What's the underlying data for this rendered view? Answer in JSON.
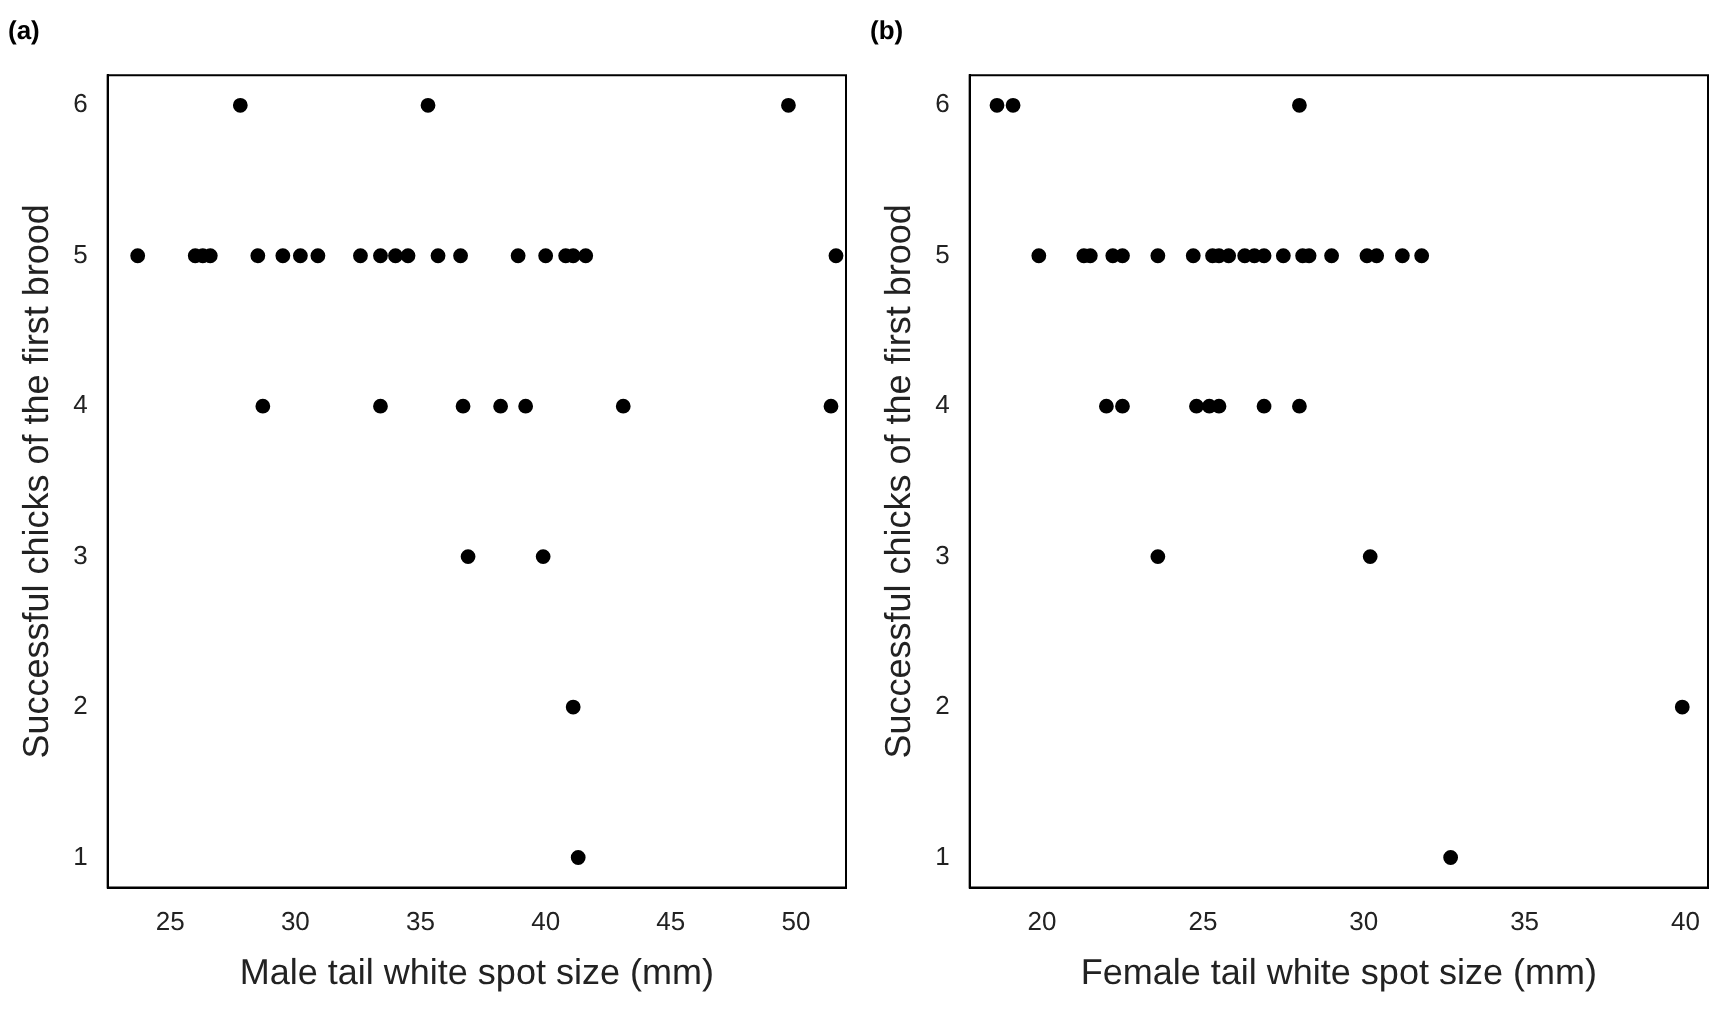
{
  "chart_data": [
    {
      "type": "scatter",
      "title": "(a)",
      "xlabel": "Male tail white spot size (mm)",
      "ylabel": "Successful chicks of the first brood",
      "xlim": [
        22.5,
        52.0
      ],
      "xticks": [
        25,
        30,
        35,
        40,
        45,
        50
      ],
      "ylim": [
        0.8,
        6.2
      ],
      "yticks": [
        1,
        2,
        3,
        4,
        5,
        6
      ],
      "grid": false,
      "marker": "circle",
      "series": [
        {
          "color": "#000000",
          "x": [
            27.8,
            35.3,
            49.7,
            23.7,
            26.0,
            26.3,
            26.6,
            28.5,
            29.5,
            30.2,
            30.9,
            32.6,
            33.4,
            34.0,
            34.5,
            35.7,
            36.6,
            38.9,
            40.0,
            40.8,
            41.1,
            41.6,
            51.6,
            28.7,
            33.4,
            36.7,
            38.2,
            39.2,
            43.1,
            51.4,
            36.9,
            39.9,
            41.1,
            41.3
          ],
          "values": [
            6,
            6,
            6,
            5,
            5,
            5,
            5,
            5,
            5,
            5,
            5,
            5,
            5,
            5,
            5,
            5,
            5,
            5,
            5,
            5,
            5,
            5,
            5,
            4,
            4,
            4,
            4,
            4,
            4,
            4,
            3,
            3,
            2,
            1
          ]
        }
      ]
    },
    {
      "type": "scatter",
      "title": "(b)",
      "xlabel": "Female tail white spot size (mm)",
      "ylabel": "Successful chicks of the first brood",
      "xlim": [
        17.75,
        40.7
      ],
      "xticks": [
        20,
        25,
        30,
        35,
        40
      ],
      "ylim": [
        0.8,
        6.2
      ],
      "yticks": [
        1,
        2,
        3,
        4,
        5,
        6
      ],
      "grid": false,
      "marker": "circle",
      "series": [
        {
          "color": "#000000",
          "x": [
            18.6,
            19.1,
            28.0,
            19.9,
            21.3,
            21.5,
            22.2,
            22.5,
            23.6,
            24.7,
            25.3,
            25.5,
            25.8,
            26.3,
            26.6,
            26.9,
            27.5,
            28.1,
            28.3,
            29.0,
            30.1,
            30.4,
            31.2,
            31.8,
            22.0,
            22.5,
            24.8,
            25.2,
            25.5,
            26.9,
            28.0,
            23.6,
            30.2,
            39.9,
            32.7
          ],
          "values": [
            6,
            6,
            6,
            5,
            5,
            5,
            5,
            5,
            5,
            5,
            5,
            5,
            5,
            5,
            5,
            5,
            5,
            5,
            5,
            5,
            5,
            5,
            5,
            5,
            4,
            4,
            4,
            4,
            4,
            4,
            4,
            3,
            3,
            2,
            1
          ]
        }
      ]
    }
  ]
}
